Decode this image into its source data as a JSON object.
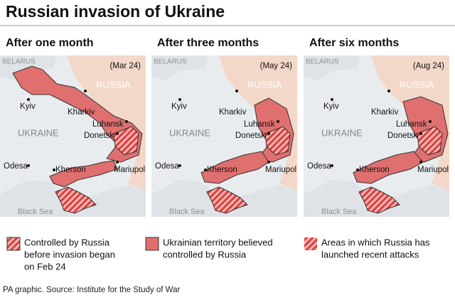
{
  "title": "Russian invasion of Ukraine",
  "panels": [
    {
      "heading": "After one month",
      "date": "(Mar 24)",
      "labels": {
        "belarus": "BELARUS",
        "russia": "RUSSIA",
        "kyiv": "Kyiv",
        "kharkiv": "Kharkiv",
        "luhansk": "Luhansk",
        "ukraine": "UKRAINE",
        "donetsk": "Donetsk",
        "odesa": "Odesa",
        "kherson": "Kherson",
        "mariupol": "Mariupol",
        "black_sea": "Black Sea"
      }
    },
    {
      "heading": "After three months",
      "date": "(May 24)",
      "labels": {
        "belarus": "BELARUS",
        "russia": "RUSSIA",
        "kyiv": "Kyiv",
        "kharkiv": "Kharkiv",
        "luhansk": "Luhansk",
        "ukraine": "UKRAINE",
        "donetsk": "Donetsk",
        "odesa": "Odesa",
        "kherson": "Kherson",
        "mariupol": "Mariupol",
        "black_sea": "Black Sea"
      }
    },
    {
      "heading": "After six months",
      "date": "(Aug 24)",
      "labels": {
        "belarus": "BELARUS",
        "russia": "RUSSIA",
        "kyiv": "Kyiv",
        "kharkiv": "Kharkiv",
        "luhansk": "Luhansk",
        "ukraine": "UKRAINE",
        "donetsk": "Donetsk",
        "odesa": "Odesa",
        "kherson": "Kherson",
        "mariupol": "Mariupol",
        "black_sea": "Black Sea"
      }
    }
  ],
  "legend": [
    {
      "lines": [
        "Controlled by Russia",
        "before invasion began",
        "on Feb 24"
      ]
    },
    {
      "lines": [
        "Ukrainian territory believed",
        "controlled by Russia"
      ]
    },
    {
      "lines": [
        "Areas in which Russia has",
        "launched recent attacks"
      ]
    }
  ],
  "source": "PA graphic. Source: Institute for the Study of War"
}
